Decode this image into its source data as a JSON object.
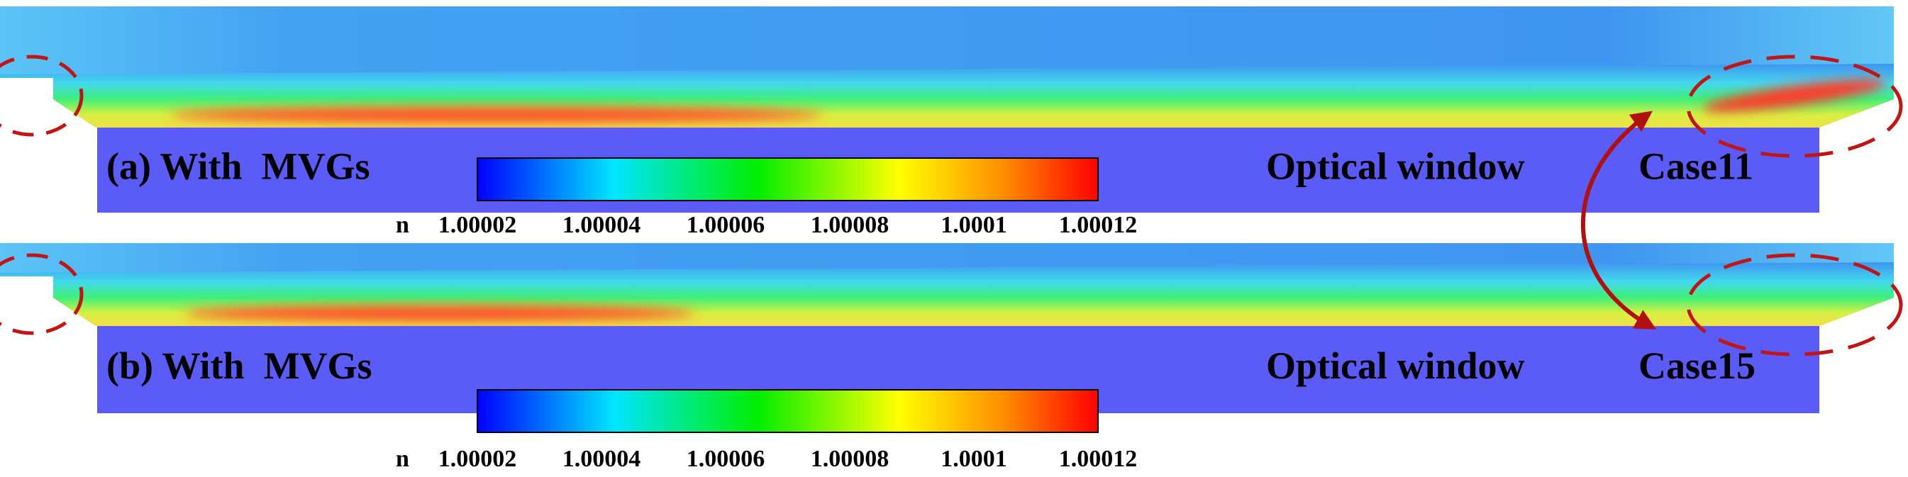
{
  "panels": [
    {
      "label": "(a) With  MVGs",
      "window_label": "Optical window",
      "case_label": "Case11",
      "colorbar": {
        "variable": "n",
        "ticks": [
          "1.00002",
          "1.00004",
          "1.00006",
          "1.00008",
          "1.0001",
          "1.00012"
        ]
      }
    },
    {
      "label": "(b) With  MVGs",
      "window_label": "Optical window",
      "case_label": "Case15",
      "colorbar": {
        "variable": "n",
        "ticks": [
          "1.00002",
          "1.00004",
          "1.00006",
          "1.00008",
          "1.0001",
          "1.00012"
        ]
      }
    }
  ]
}
